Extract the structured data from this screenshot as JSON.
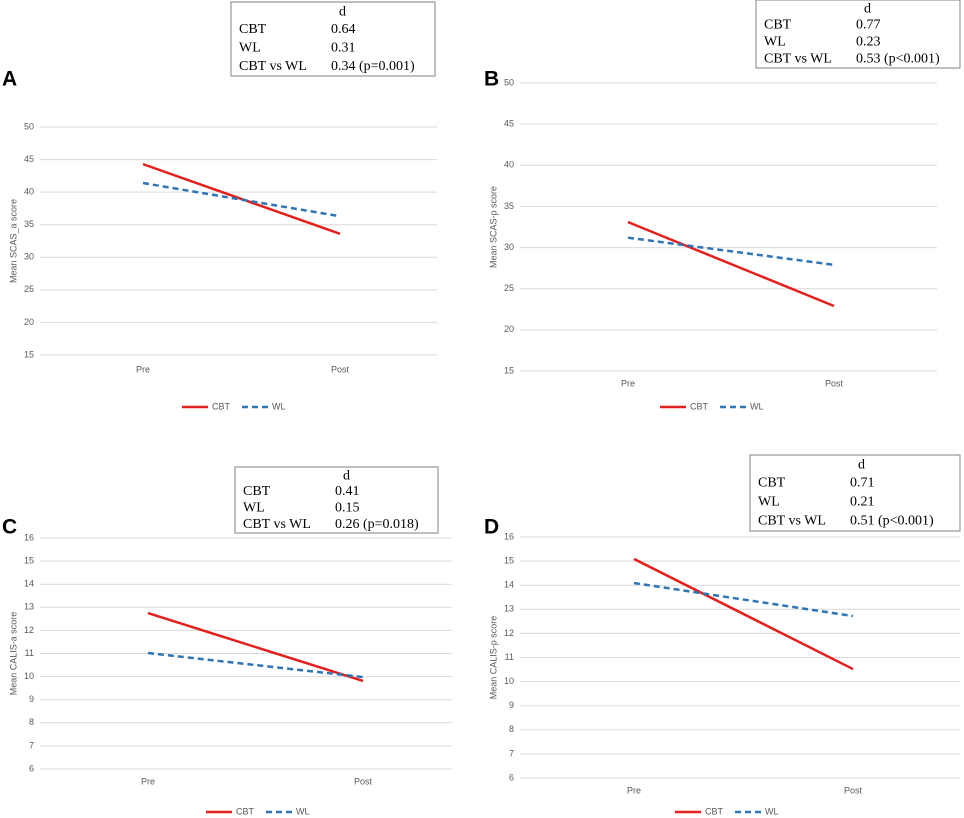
{
  "chart_data": [
    {
      "type": "line",
      "panel": "A",
      "y_label": "Mean SCAS_a score",
      "categories": [
        "Pre",
        "Post"
      ],
      "series": [
        {
          "name": "CBT",
          "color": "#e3201b",
          "dash": false,
          "values": [
            44.3,
            33.6
          ]
        },
        {
          "name": "WL",
          "color": "#2e75b6",
          "dash": true,
          "values": [
            41.4,
            36.3
          ]
        }
      ],
      "ylim": [
        15,
        50
      ],
      "yticks": [
        15,
        20,
        25,
        30,
        35,
        40,
        45,
        50
      ],
      "grid": true,
      "legend": "bottom",
      "annotation_table": {
        "header": "d",
        "rows": [
          [
            "CBT",
            "0.64"
          ],
          [
            "WL",
            "0.31"
          ],
          [
            "CBT vs WL",
            "0.34 (p=0.001)"
          ]
        ]
      }
    },
    {
      "type": "line",
      "panel": "B",
      "y_label": "Mean SCAS-p score",
      "categories": [
        "Pre",
        "Post"
      ],
      "series": [
        {
          "name": "CBT",
          "color": "#e3201b",
          "dash": false,
          "values": [
            33.1,
            22.9
          ]
        },
        {
          "name": "WL",
          "color": "#2e75b6",
          "dash": true,
          "values": [
            31.2,
            27.9
          ]
        }
      ],
      "ylim": [
        15,
        50
      ],
      "yticks": [
        15,
        20,
        25,
        30,
        35,
        40,
        45,
        50
      ],
      "grid": true,
      "legend": "bottom",
      "annotation_table": {
        "header": "d",
        "rows": [
          [
            "CBT",
            "0.77"
          ],
          [
            "WL",
            "0.23"
          ],
          [
            "CBT vs WL",
            "0.53 (p<0.001)"
          ]
        ]
      }
    },
    {
      "type": "line",
      "panel": "C",
      "y_label": "Mean CALIS-a score",
      "categories": [
        "Pre",
        "Post"
      ],
      "series": [
        {
          "name": "CBT",
          "color": "#e3201b",
          "dash": false,
          "values": [
            12.75,
            9.81
          ]
        },
        {
          "name": "WL",
          "color": "#2e75b6",
          "dash": true,
          "values": [
            11.02,
            9.98
          ]
        }
      ],
      "ylim": [
        6,
        16
      ],
      "yticks": [
        6,
        7,
        8,
        9,
        10,
        11,
        12,
        13,
        14,
        15,
        16
      ],
      "grid": true,
      "legend": "bottom",
      "annotation_table": {
        "header": "d",
        "rows": [
          [
            "CBT",
            "0.41"
          ],
          [
            "WL",
            "0.15"
          ],
          [
            "CBT vs WL",
            "0.26 (p=0.018)"
          ]
        ]
      }
    },
    {
      "type": "line",
      "panel": "D",
      "y_label": "Mean CALIS-p score",
      "categories": [
        "Pre",
        "Post"
      ],
      "series": [
        {
          "name": "CBT",
          "color": "#e3201b",
          "dash": false,
          "values": [
            15.09,
            10.52
          ]
        },
        {
          "name": "WL",
          "color": "#2e75b6",
          "dash": true,
          "values": [
            14.09,
            12.72
          ]
        }
      ],
      "ylim": [
        6,
        16
      ],
      "yticks": [
        6,
        7,
        8,
        9,
        10,
        11,
        12,
        13,
        14,
        15,
        16
      ],
      "grid": true,
      "legend": "bottom",
      "annotation_table": {
        "header": "d",
        "rows": [
          [
            "CBT",
            "0.71"
          ],
          [
            "WL",
            "0.21"
          ],
          [
            "CBT vs WL",
            "0.51 (p<0.001)"
          ]
        ]
      }
    }
  ]
}
